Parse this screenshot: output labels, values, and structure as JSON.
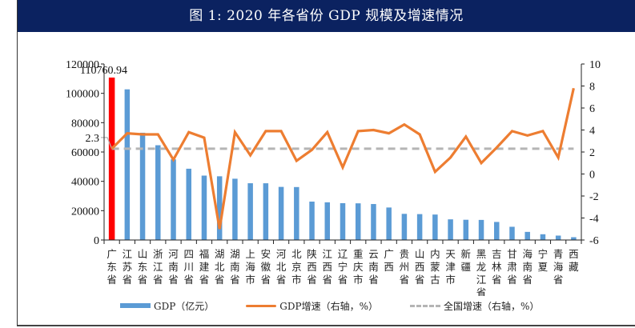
{
  "title": "图 1:   2020 年各省份 GDP 规模及增速情况",
  "chart_data": {
    "type": "bar+line",
    "title": "图 1:   2020 年各省份 GDP 规模及增速情况",
    "categories": [
      "广东省",
      "江苏省",
      "山东省",
      "浙江省",
      "河南省",
      "四川省",
      "福建省",
      "湖北省",
      "湖南省",
      "上海市",
      "安徽省",
      "河北省",
      "北京市",
      "陕西省",
      "江西省",
      "辽宁省",
      "重庆市",
      "云南省",
      "广西",
      "贵州省",
      "山西省",
      "内蒙古",
      "天津市",
      "新疆",
      "黑龙江省",
      "吉林省",
      "甘肃省",
      "海南省",
      "宁夏",
      "青海省",
      "西藏"
    ],
    "series": [
      {
        "name": "GDP（亿元）",
        "type": "bar",
        "axis": "left",
        "color": "#5b9bd5",
        "highlight_color": "#ff0000",
        "highlight_index": 0,
        "values": [
          110760.94,
          102719,
          73129,
          64613,
          54997,
          48599,
          43904,
          43443,
          41781,
          38701,
          38681,
          36207,
          36103,
          26182,
          25692,
          25115,
          25003,
          24522,
          22157,
          17827,
          17652,
          17360,
          14084,
          13798,
          13699,
          12311,
          9017,
          5532,
          3921,
          3006,
          1903
        ]
      },
      {
        "name": "GDP增速（右轴，%）",
        "type": "line",
        "axis": "right",
        "color": "#ed7d31",
        "values": [
          2.3,
          3.7,
          3.6,
          3.6,
          1.3,
          3.8,
          3.3,
          -5.0,
          3.8,
          1.7,
          3.9,
          3.9,
          1.2,
          2.2,
          3.8,
          0.6,
          3.9,
          4.0,
          3.7,
          4.5,
          3.6,
          0.2,
          1.5,
          3.4,
          1.0,
          2.4,
          3.9,
          3.5,
          3.9,
          1.5,
          7.8
        ]
      },
      {
        "name": "全国增速（右轴，%）",
        "type": "line",
        "axis": "right",
        "style": "dashed",
        "color": "#b5b5b5",
        "value": 2.3
      }
    ],
    "left_axis": {
      "ylim": [
        0,
        120000
      ],
      "ticks": [
        "0",
        "20000",
        "40000",
        "60000",
        "80000",
        "100000",
        "120000"
      ]
    },
    "right_axis": {
      "ylim": [
        -6,
        10
      ],
      "ticks": [
        "-6",
        "-4",
        "-2",
        "0",
        "2",
        "4",
        "6",
        "8",
        "10"
      ]
    },
    "annotations": [
      {
        "text": "110760.94",
        "target": "广东省 GDP"
      },
      {
        "text": "2.3",
        "target": "全国增速"
      }
    ],
    "legend": [
      "GDP（亿元）",
      "GDP增速（右轴，%）",
      "全国增速（右轴，%）"
    ],
    "legend_position": "bottom",
    "grid": false
  }
}
